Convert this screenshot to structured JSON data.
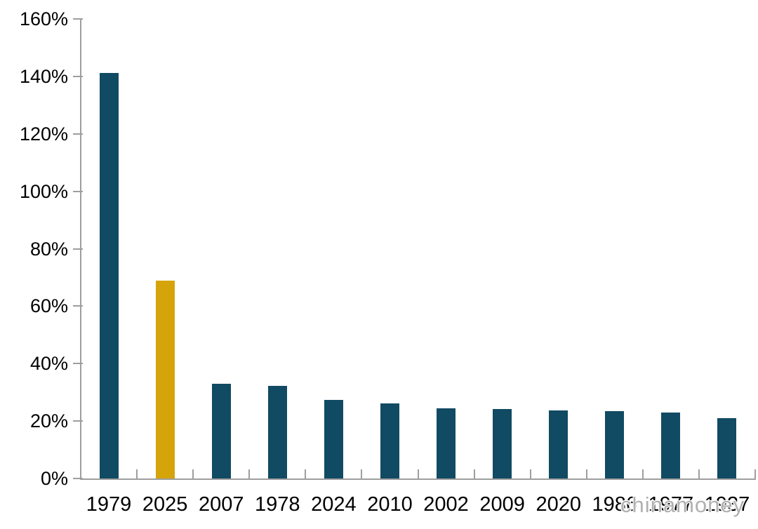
{
  "chart_data": {
    "type": "bar",
    "title": "",
    "xlabel": "",
    "ylabel": "",
    "categories": [
      "1979",
      "2025",
      "2007",
      "1978",
      "2024",
      "2010",
      "2002",
      "2009",
      "2020",
      "1986",
      "1977",
      "1937"
    ],
    "values": [
      141.3,
      68.8,
      33.0,
      32.2,
      27.4,
      26.2,
      24.5,
      24.2,
      23.7,
      23.4,
      23.0,
      20.9
    ],
    "unit": "%",
    "ylim": [
      0,
      160
    ],
    "ytick_step": 20,
    "ytick_labels": [
      "0%",
      "20%",
      "40%",
      "60%",
      "80%",
      "100%",
      "120%",
      "140%",
      "160%"
    ],
    "bar_color": "#114A63",
    "highlight_index": 1,
    "highlight_color": "#D5A40B",
    "axis_color": "#9E9E9E",
    "grid": false,
    "legend": "none",
    "watermark": "chinamoney"
  }
}
